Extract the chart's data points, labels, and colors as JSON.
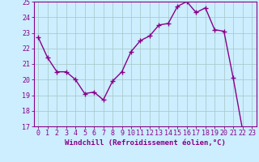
{
  "x": [
    0,
    1,
    2,
    3,
    4,
    5,
    6,
    7,
    8,
    9,
    10,
    11,
    12,
    13,
    14,
    15,
    16,
    17,
    18,
    19,
    20,
    21,
    22,
    23
  ],
  "y": [
    22.7,
    21.4,
    20.5,
    20.5,
    20.0,
    19.1,
    19.2,
    18.7,
    19.9,
    20.5,
    21.8,
    22.5,
    22.8,
    23.5,
    23.6,
    24.7,
    25.0,
    24.3,
    24.6,
    23.2,
    23.1,
    20.1,
    16.8,
    16.6
  ],
  "line_color": "#880088",
  "marker": "+",
  "marker_size": 4,
  "background_color": "#cceeff",
  "grid_color": "#aacccc",
  "xlabel": "Windchill (Refroidissement éolien,°C)",
  "ylabel": "",
  "ylim": [
    17,
    25
  ],
  "xlim": [
    -0.5,
    23.5
  ],
  "yticks": [
    17,
    18,
    19,
    20,
    21,
    22,
    23,
    24,
    25
  ],
  "xticks": [
    0,
    1,
    2,
    3,
    4,
    5,
    6,
    7,
    8,
    9,
    10,
    11,
    12,
    13,
    14,
    15,
    16,
    17,
    18,
    19,
    20,
    21,
    22,
    23
  ],
  "axis_color": "#880088",
  "tick_color": "#880088",
  "xlabel_color": "#880088",
  "xlabel_fontsize": 6.5,
  "tick_fontsize": 6.0,
  "line_width": 1.0
}
